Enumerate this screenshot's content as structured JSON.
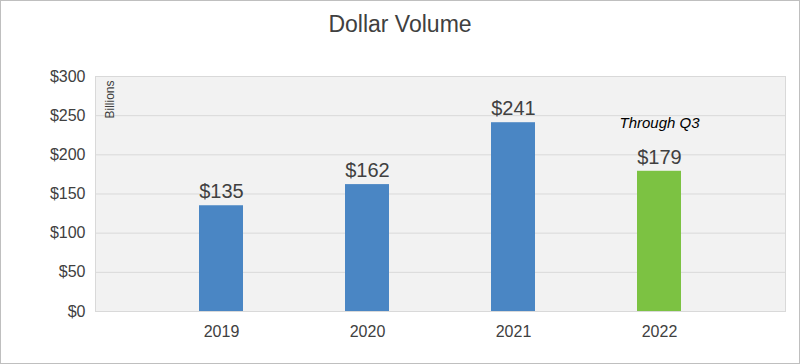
{
  "chart_data": {
    "type": "bar",
    "title": "Dollar Volume",
    "categories": [
      "2019",
      "2020",
      "2021",
      "2022"
    ],
    "values": [
      135,
      162,
      241,
      179
    ],
    "value_labels": [
      "$135",
      "$162",
      "$241",
      "$179"
    ],
    "colors": [
      "#4a86c4",
      "#4a86c4",
      "#4a86c4",
      "#7cc242"
    ],
    "ylim": [
      0,
      300
    ],
    "yticks": [
      {
        "value": 0,
        "label": "$0"
      },
      {
        "value": 50,
        "label": "$50"
      },
      {
        "value": 100,
        "label": "$100"
      },
      {
        "value": 150,
        "label": "$150"
      },
      {
        "value": 200,
        "label": "$200"
      },
      {
        "value": 250,
        "label": "$250"
      },
      {
        "value": 300,
        "label": "$300"
      }
    ],
    "ylabel": "Billions",
    "annotations": [
      {
        "text": "Through Q3",
        "category": "2022"
      }
    ],
    "grid": true,
    "data_labels": true
  }
}
